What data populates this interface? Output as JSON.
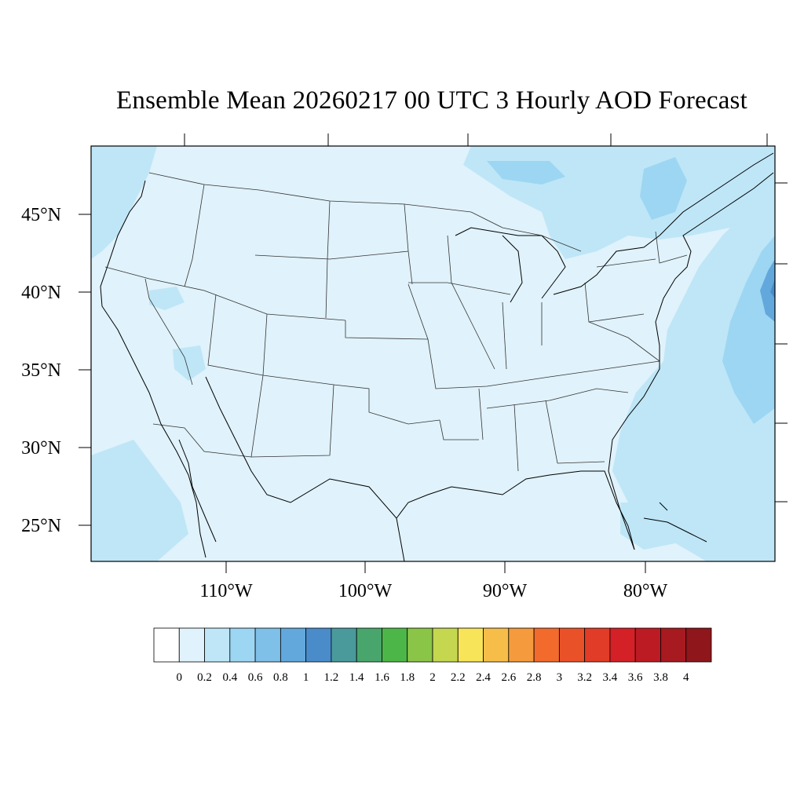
{
  "title": "Ensemble Mean 20260217 00 UTC 3 Hourly AOD Forecast",
  "map": {
    "lat_labels": [
      "45°N",
      "40°N",
      "35°N",
      "30°N",
      "25°N"
    ],
    "lon_labels": [
      "110°W",
      "100°W",
      "90°W",
      "80°W"
    ],
    "lat_range": [
      22.5,
      49.5
    ],
    "lon_range": [
      -119,
      -70
    ],
    "background_color": "#e0f2fb",
    "coast_color": "#000000",
    "state_line_color": "#333333"
  },
  "colorbar": {
    "levels": [
      "0",
      "0.2",
      "0.4",
      "0.6",
      "0.8",
      "1",
      "1.2",
      "1.4",
      "1.6",
      "1.8",
      "2",
      "2.2",
      "2.4",
      "2.6",
      "2.8",
      "3",
      "3.2",
      "3.4",
      "3.6",
      "3.8",
      "4"
    ],
    "colors": [
      "#ffffff",
      "#e0f2fb",
      "#bee6f7",
      "#9dd6f2",
      "#7fc0e8",
      "#62a8dc",
      "#4a8bca",
      "#4a9a9c",
      "#48a66c",
      "#4cb748",
      "#8ac548",
      "#c4d74f",
      "#f8e459",
      "#f6be49",
      "#f59b3d",
      "#f26b2d",
      "#e95229",
      "#e03c27",
      "#d42027",
      "#bd1b24",
      "#a71a20",
      "#8f161b"
    ]
  }
}
